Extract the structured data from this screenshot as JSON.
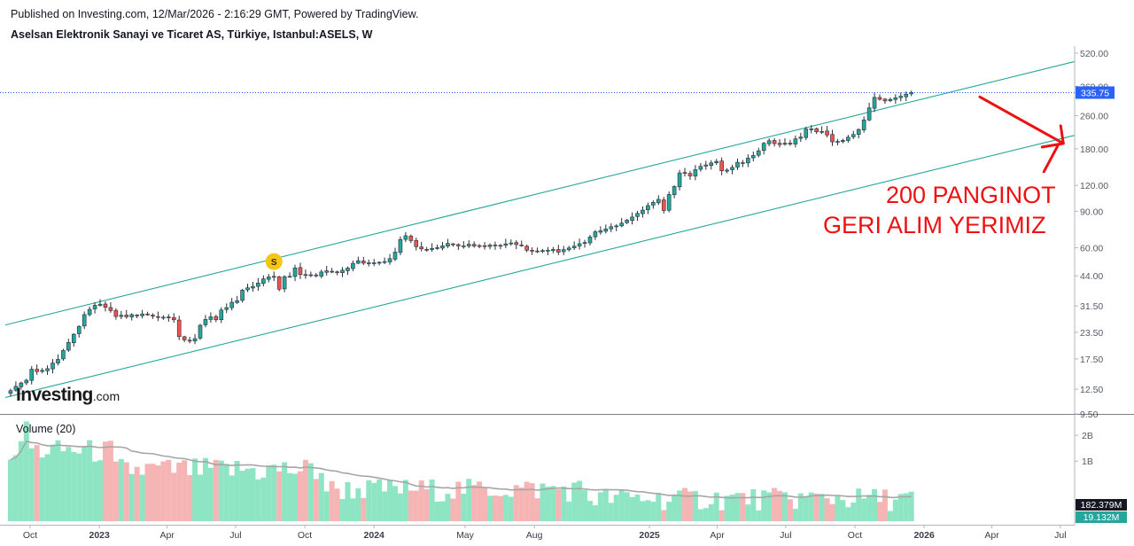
{
  "header": {
    "published": "Published on Investing.com, 12/Mar/2026 - 2:16:29 GMT, Powered by TradingView.",
    "instrument": "Aselsan Elektronik Sanayi ve Ticaret AS, Türkiye, Istanbul:ASELS, W"
  },
  "logo": {
    "main": "Investing",
    "suffix": ".com"
  },
  "annotation": {
    "line1": "200 PANGINOT",
    "line2": "GERI ALIM YERIMIZ"
  },
  "colors": {
    "up": "#26a69a",
    "down": "#ef5350",
    "channel": "#26a69a",
    "annotation": "#ee1111",
    "last_price_badge": "#2962ff",
    "vol_up": "#8ee5c3",
    "vol_down": "#f5b5b5",
    "vol_ma": "#a6a6a6",
    "marker": "#f5c518"
  },
  "chart_data": [
    {
      "type": "candlestick",
      "title": "Aselsan Elektronik Sanayi ve Ticaret AS, Türkiye, Istanbul:ASELS, W",
      "scale": "log",
      "interval": "W",
      "yticks": [
        9.5,
        12.5,
        17.5,
        23.5,
        31.5,
        44,
        60,
        90,
        120,
        180,
        260,
        360,
        520
      ],
      "ytick_labels": [
        "9.50",
        "12.50",
        "17.50",
        "23.50",
        "31.50",
        "44.00",
        "60.00",
        "90.00",
        "120.00",
        "180.00",
        "260.00",
        "360.00",
        "520.00"
      ],
      "ylim": [
        9.5,
        520
      ],
      "xlim": [
        "2022-08-29",
        "2026-07-20"
      ],
      "xticks": [
        {
          "label": "Oct",
          "date": "2022-10-01"
        },
        {
          "label": "2023",
          "date": "2023-01-01"
        },
        {
          "label": "Apr",
          "date": "2023-04-01"
        },
        {
          "label": "Jul",
          "date": "2023-07-01"
        },
        {
          "label": "Oct",
          "date": "2023-10-01"
        },
        {
          "label": "2024",
          "date": "2024-01-01"
        },
        {
          "label": "May",
          "date": "2024-05-01"
        },
        {
          "label": "Aug",
          "date": "2024-08-01"
        },
        {
          "label": "2025",
          "date": "2025-01-01"
        },
        {
          "label": "Apr",
          "date": "2025-04-01"
        },
        {
          "label": "Jul",
          "date": "2025-07-01"
        },
        {
          "label": "Oct",
          "date": "2025-10-01"
        },
        {
          "label": "2026",
          "date": "2026-01-01"
        },
        {
          "label": "Apr",
          "date": "2026-04-01"
        },
        {
          "label": "Jul",
          "date": "2026-07-01"
        }
      ],
      "bold_xticks": [
        "2023",
        "2024",
        "2025",
        "2026"
      ],
      "last_price": 335.75,
      "last_price_label": "335.75",
      "channel_lines": [
        {
          "name": "upper",
          "start": {
            "date": "2022-08-29",
            "price": 25.5
          },
          "end": {
            "date": "2026-07-20",
            "price": 474
          }
        },
        {
          "name": "lower",
          "start": {
            "date": "2022-08-29",
            "price": 11.4
          },
          "end": {
            "date": "2026-07-20",
            "price": 209
          }
        }
      ],
      "event_marker": {
        "label": "S",
        "date": "2023-08-21",
        "price": 51.5
      },
      "annotation_arrow": {
        "from": {
          "date": "2026-03-16",
          "price": 320
        },
        "to": {
          "date": "2026-07-05",
          "price": 191
        }
      },
      "weekly_close": [
        12.3,
        12.9,
        13.4,
        13.8,
        15.6,
        15.2,
        15.4,
        15.7,
        16.7,
        17.4,
        19.2,
        21.0,
        23.0,
        25.1,
        28.6,
        30.3,
        31.7,
        32.1,
        31.0,
        29.9,
        28.0,
        28.4,
        27.9,
        28.6,
        28.3,
        28.8,
        28.6,
        28.1,
        27.8,
        27.7,
        27.6,
        27.0,
        22.4,
        21.6,
        21.3,
        21.9,
        25.4,
        27.1,
        27.9,
        27.0,
        30.1,
        30.9,
        32.8,
        33.4,
        37.5,
        38.5,
        39.1,
        40.6,
        42.5,
        43.4,
        43.7,
        37.9,
        43.6,
        43.7,
        48.0,
        44.6,
        44.5,
        44.5,
        44.0,
        45.9,
        46.5,
        45.8,
        45.8,
        46.8,
        47.9,
        50.5,
        52.0,
        50.6,
        50.8,
        50.8,
        51.1,
        51.5,
        53.2,
        57.2,
        65.8,
        68.6,
        65.0,
        60.8,
        59.3,
        58.7,
        59.6,
        60.1,
        61.3,
        63.0,
        62.3,
        61.3,
        61.3,
        62.4,
        61.2,
        61.2,
        61.1,
        61.9,
        61.5,
        61.5,
        62.7,
        63.3,
        62.2,
        61.4,
        58.4,
        58.1,
        57.6,
        58.2,
        58.4,
        58.9,
        57.2,
        58.8,
        59.9,
        61.1,
        62.8,
        63.6,
        67.7,
        71.7,
        72.5,
        74.0,
        75.8,
        76.5,
        78.9,
        81.5,
        84.4,
        87.9,
        91.2,
        95.9,
        99.3,
        102.7,
        90.8,
        108.4,
        118.4,
        137.7,
        137.3,
        133.2,
        142.8,
        148.1,
        150.5,
        153.9,
        156.6,
        141.0,
        142.1,
        146.4,
        155.0,
        153.9,
        162.3,
        167.0,
        176.0,
        191.3,
        196.9,
        190.7,
        188.5,
        191.5,
        189.7,
        201.0,
        205.1,
        224.0,
        224.6,
        217.3,
        218.2,
        209.9,
        194.5,
        195.4,
        197.7,
        204.6,
        211.0,
        223.0,
        247.9,
        283.4,
        318.4,
        311.7,
        306.0,
        311.1,
        316.8,
        322.5,
        330.2,
        335.75
      ],
      "volume": {
        "title": "Volume (20)",
        "scale": "log",
        "yticks": [
          1000000000,
          2000000000
        ],
        "ytick_labels": [
          "1B",
          "2B"
        ],
        "ylim": [
          200000000,
          3000000000
        ],
        "last_volume_label": "182.379M",
        "ma_label": "19.132M",
        "note": "Bar heights encoded as millions on a log axis"
      }
    }
  ]
}
